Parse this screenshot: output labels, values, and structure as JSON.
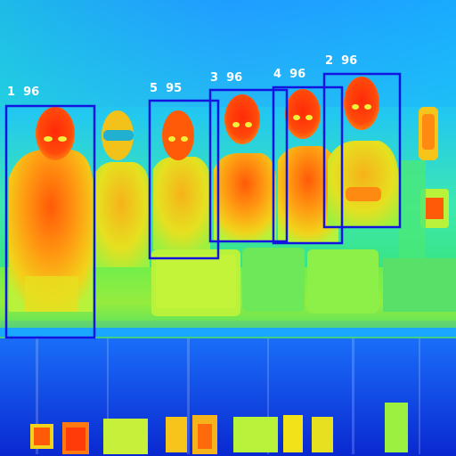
{
  "image": {
    "kind": "thermal-camera-frame",
    "palette": [
      "#0a2fd8",
      "#1a8cff",
      "#19d6e8",
      "#3cf07a",
      "#b8f23a",
      "#f2e21a",
      "#ff9a12",
      "#ff3b0a"
    ]
  },
  "detections": {
    "box_color": "#1414e0",
    "label_color": "#ffffff",
    "items": [
      {
        "id": "1",
        "score": "96",
        "label": "1  96"
      },
      {
        "id": "5",
        "score": "95",
        "label": "5  95"
      },
      {
        "id": "3",
        "score": "96",
        "label": "3  96"
      },
      {
        "id": "4",
        "score": "96",
        "label": "4  96"
      },
      {
        "id": "2",
        "score": "96",
        "label": "2  96"
      }
    ]
  }
}
